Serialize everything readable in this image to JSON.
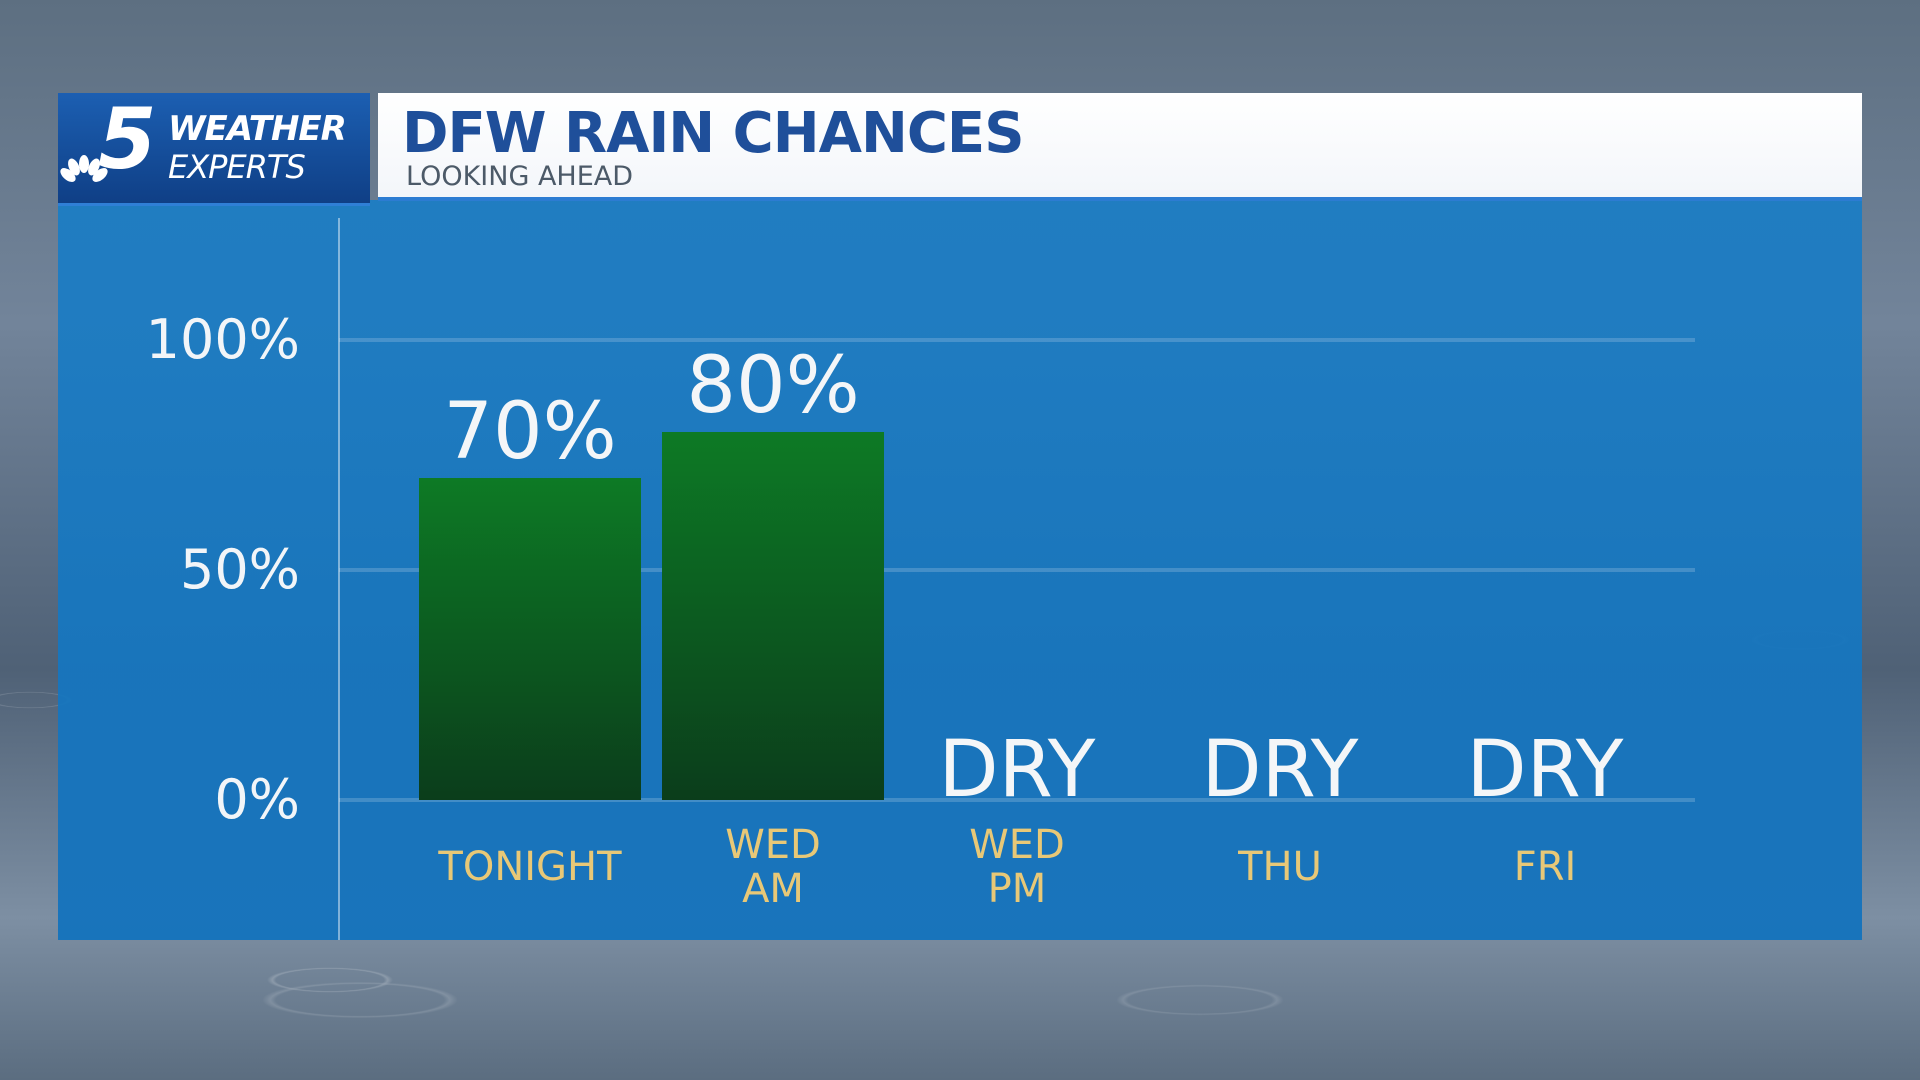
{
  "branding": {
    "logo_number": "5",
    "logo_line1": "WEATHER",
    "logo_line2": "EXPERTS"
  },
  "header": {
    "title": "DFW RAIN CHANCES",
    "subtitle": "LOOKING AHEAD"
  },
  "colors": {
    "panel": "#1b7dc5",
    "bar_top": "#0d7a25",
    "bar_bottom": "#0b3d1b",
    "category_text": "#e8c877",
    "title_text": "#1f4f9a"
  },
  "chart_data": {
    "type": "bar",
    "title": "DFW RAIN CHANCES",
    "subtitle": "LOOKING AHEAD",
    "categories": [
      [
        "TONIGHT"
      ],
      [
        "WED",
        "AM"
      ],
      [
        "WED",
        "PM"
      ],
      [
        "THU"
      ],
      [
        "FRI"
      ]
    ],
    "values": [
      70,
      80,
      0,
      0,
      0
    ],
    "value_labels": [
      "70%",
      "80%",
      "DRY",
      "DRY",
      "DRY"
    ],
    "ylim": [
      0,
      100
    ],
    "yticks": [
      0,
      50,
      100
    ],
    "ytick_labels": [
      "0%",
      "50%",
      "100%"
    ],
    "grid": true,
    "legend": "none"
  }
}
